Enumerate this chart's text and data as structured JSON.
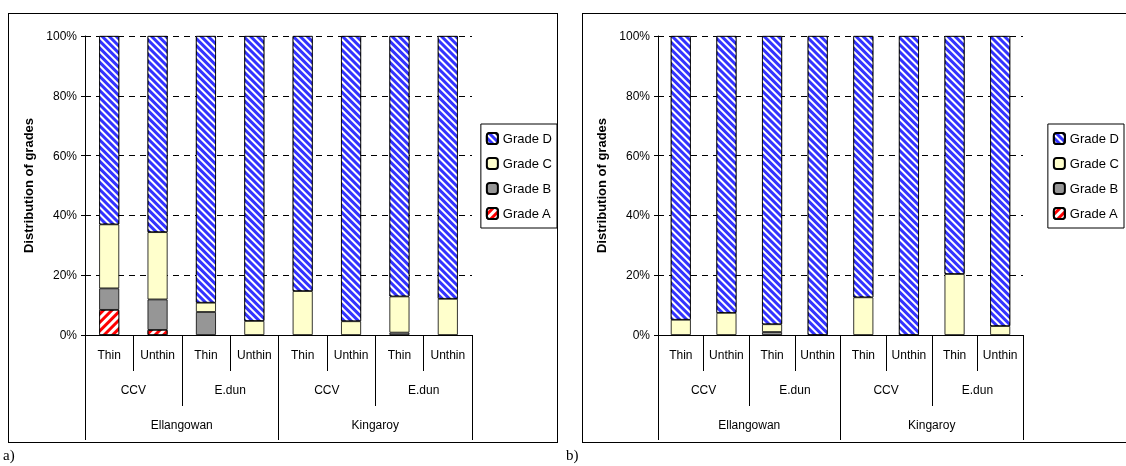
{
  "chart_data": [
    {
      "type": "bar",
      "ylabel": "Distribution of grades",
      "categories": [
        "Thin",
        "Unthin",
        "Thin",
        "Unthin",
        "Thin",
        "Unthin",
        "Thin",
        "Unthin"
      ],
      "stacked": true,
      "series": [
        {
          "name": "Grade A",
          "color": "#ff0000",
          "values": [
            8.4,
            1.7,
            0,
            0,
            0,
            0,
            0,
            0
          ]
        },
        {
          "name": "Grade B",
          "color": "#969696",
          "values": [
            7.2,
            10.2,
            7.7,
            0,
            0,
            0,
            0.8,
            0
          ]
        },
        {
          "name": "Grade C",
          "color": "#ffffcc",
          "values": [
            21.4,
            22.5,
            3.1,
            4.7,
            14.7,
            4.6,
            12.1,
            12.1
          ]
        },
        {
          "name": "Grade D",
          "color": "#3333ff",
          "values": [
            63,
            65.6,
            89.2,
            95.3,
            85.3,
            95.4,
            87.1,
            87.9
          ]
        }
      ],
      "ylim": [
        0,
        100
      ],
      "yticks": [
        {
          "value": 0,
          "label": "0%"
        },
        {
          "value": 20,
          "label": "20%"
        },
        {
          "value": 40,
          "label": "40%"
        },
        {
          "value": 60,
          "label": "60%"
        },
        {
          "value": 80,
          "label": "80%"
        },
        {
          "value": 100,
          "label": "100%"
        }
      ],
      "grid": "y",
      "legend": "right",
      "annotations": [
        "CCV",
        "E.dun",
        "CCV",
        "E.dun",
        "Ellangowan",
        "Kingaroy",
        "a)"
      ]
    },
    {
      "type": "bar",
      "ylabel": "Distribution of grades",
      "categories": [
        "Thin",
        "Unthin",
        "Thin",
        "Unthin",
        "Thin",
        "Unthin",
        "Thin",
        "Unthin"
      ],
      "stacked": true,
      "series": [
        {
          "name": "Grade A",
          "color": "#ff0000",
          "values": [
            0,
            0,
            0,
            0,
            0,
            0,
            0,
            0
          ]
        },
        {
          "name": "Grade B",
          "color": "#969696",
          "values": [
            0,
            0,
            1,
            0,
            0,
            0,
            0,
            0
          ]
        },
        {
          "name": "Grade C",
          "color": "#ffffcc",
          "values": [
            5.1,
            7.4,
            2.6,
            0,
            12.6,
            0,
            20.4,
            3
          ]
        },
        {
          "name": "Grade D",
          "color": "#3333ff",
          "values": [
            94.9,
            92.6,
            96.4,
            100,
            87.4,
            100,
            79.6,
            97
          ]
        }
      ],
      "ylim": [
        0,
        100
      ],
      "yticks": [
        {
          "value": 0,
          "label": "0%"
        },
        {
          "value": 20,
          "label": "20%"
        },
        {
          "value": 40,
          "label": "40%"
        },
        {
          "value": 60,
          "label": "60%"
        },
        {
          "value": 80,
          "label": "80%"
        },
        {
          "value": 100,
          "label": "100%"
        }
      ],
      "grid": "y",
      "legend": "right",
      "annotations": [
        "CCV",
        "E.dun",
        "CCV",
        "E.dun",
        "Ellangowan",
        "Kingaroy",
        "b)"
      ]
    }
  ]
}
